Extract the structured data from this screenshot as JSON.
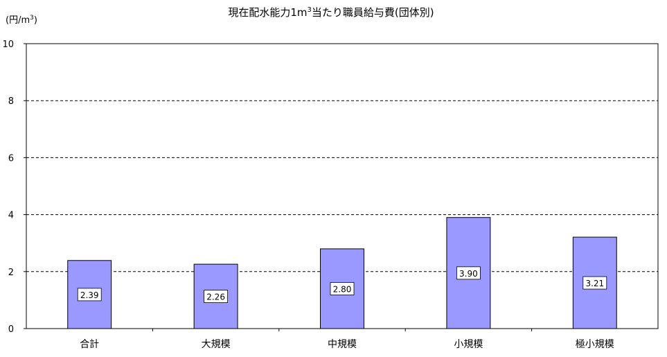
{
  "chart_data": {
    "type": "bar",
    "title_main": "現在配水能力1m",
    "title_sup": "3",
    "title_rest": "当たり職員給与費(団体別)",
    "unit_main": "(円/m",
    "unit_sup": "3",
    "unit_rest": ")",
    "categories": [
      "合計",
      "大規模",
      "中規模",
      "小規模",
      "極小規模"
    ],
    "values": [
      2.39,
      2.26,
      2.8,
      3.9,
      3.21
    ],
    "value_labels": [
      "2.39",
      "2.26",
      "2.80",
      "3.90",
      "3.21"
    ],
    "ylim": [
      0,
      10
    ],
    "yticks": [
      0,
      2,
      4,
      6,
      8,
      10
    ],
    "grid": "dashed",
    "bar_color": "#9999ff",
    "legend": "none"
  }
}
